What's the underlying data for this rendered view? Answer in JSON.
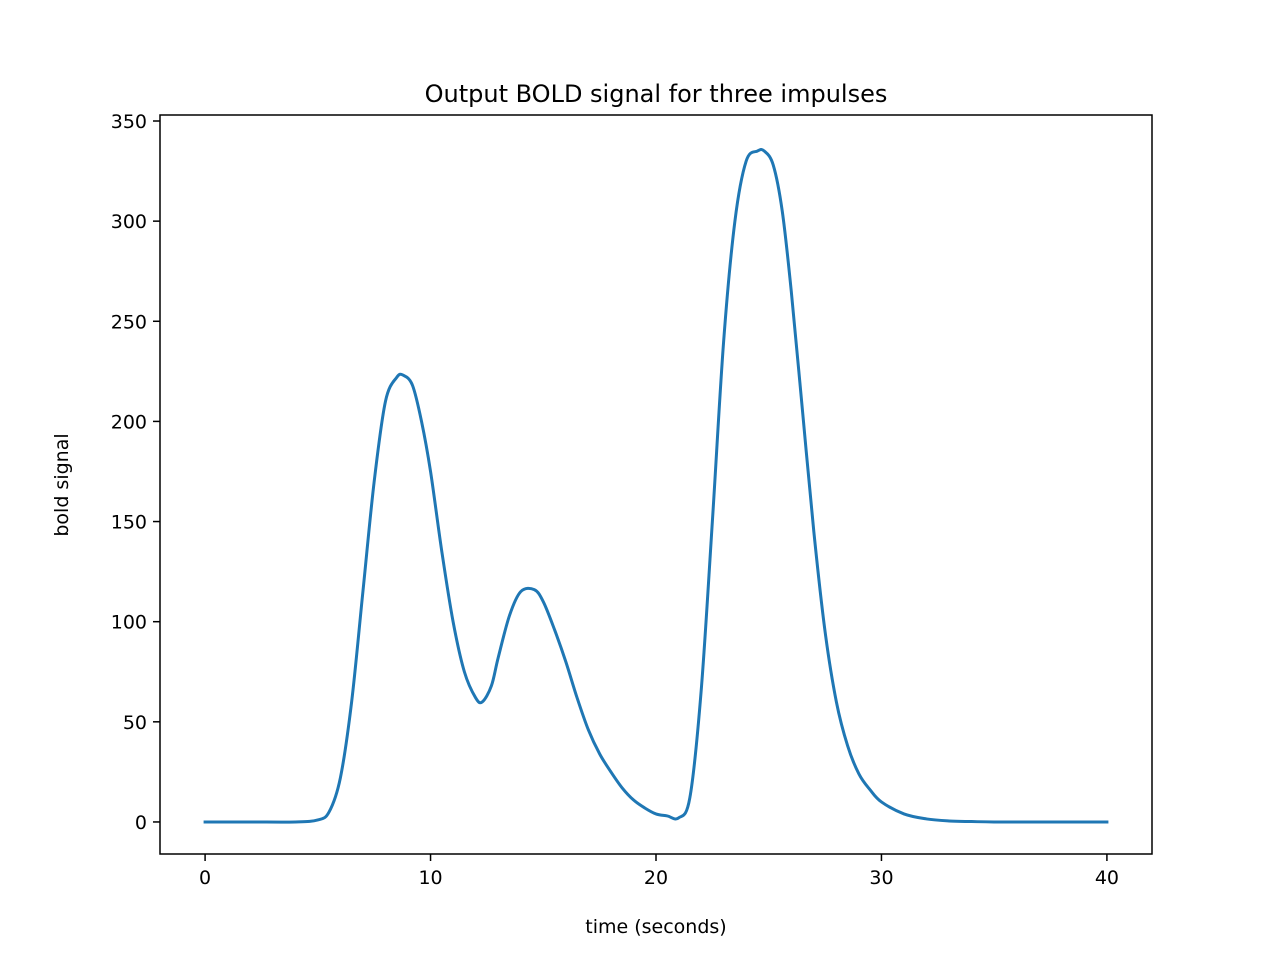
{
  "chart_data": {
    "type": "line",
    "title": "Output BOLD signal for three impulses",
    "xlabel": "time (seconds)",
    "ylabel": "bold signal",
    "xlim": [
      -2,
      42
    ],
    "ylim": [
      -16,
      353
    ],
    "xticks": [
      0,
      10,
      20,
      30,
      40
    ],
    "yticks": [
      0,
      50,
      100,
      150,
      200,
      250,
      300,
      350
    ],
    "grid": false,
    "legend": "none",
    "series": [
      {
        "color": "#1f77b4",
        "x": [
          0,
          2,
          4,
          5,
          5.5,
          6,
          6.5,
          7,
          7.5,
          8,
          8.5,
          8.8,
          9.2,
          9.6,
          10,
          10.5,
          11,
          11.5,
          12,
          12.3,
          12.7,
          13,
          13.5,
          14,
          14.6,
          15,
          15.5,
          16,
          16.5,
          17,
          17.5,
          18,
          18.5,
          19,
          19.5,
          20,
          20.5,
          21,
          21.5,
          22,
          22.5,
          23,
          23.5,
          24,
          24.5,
          24.8,
          25.2,
          25.6,
          26,
          26.5,
          27,
          27.5,
          28,
          28.5,
          29,
          29.5,
          30,
          31,
          32,
          33,
          34,
          35,
          37,
          40
        ],
        "y": [
          0,
          0,
          0,
          1,
          5,
          22,
          60,
          115,
          170,
          210,
          222,
          223,
          218,
          200,
          175,
          135,
          100,
          75,
          62,
          60,
          68,
          82,
          103,
          115,
          116,
          110,
          96,
          80,
          62,
          46,
          34,
          25,
          17,
          11,
          7,
          4,
          3,
          2,
          12,
          65,
          150,
          240,
          300,
          330,
          335,
          335,
          328,
          305,
          265,
          205,
          145,
          95,
          60,
          38,
          24,
          16,
          10,
          4,
          1.5,
          0.5,
          0.2,
          0,
          0,
          0
        ]
      }
    ]
  }
}
